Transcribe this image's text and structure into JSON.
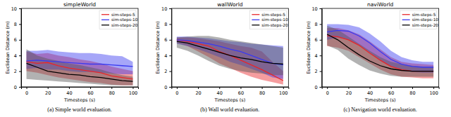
{
  "chart_data": [
    {
      "type": "line",
      "title": "simpleWorld",
      "caption": "(a) Simple world evaluation.",
      "x_label": "Timesteps (s)",
      "y_label": "Euclidean Distance (m)",
      "x": [
        0,
        10,
        20,
        30,
        40,
        50,
        60,
        70,
        80,
        90,
        100
      ],
      "xlim": [
        -5,
        105
      ],
      "xticks": [
        0,
        20,
        40,
        60,
        80,
        100
      ],
      "ylim": [
        0,
        10
      ],
      "yticks": [
        0,
        2,
        4,
        6,
        8,
        10
      ],
      "grid": false,
      "legend": "upper right",
      "series": [
        {
          "name": "sim-steps-5",
          "color": "#e8262a",
          "values": [
            3.2,
            3.0,
            3.1,
            2.7,
            2.4,
            2.2,
            2.0,
            1.8,
            1.4,
            1.2,
            1.0
          ],
          "lower": [
            2.0,
            1.8,
            1.5,
            1.2,
            1.0,
            0.8,
            0.6,
            0.5,
            0.3,
            0.2,
            0.2
          ],
          "upper": [
            4.5,
            4.2,
            4.3,
            4.0,
            3.8,
            3.5,
            3.3,
            3.0,
            2.6,
            2.3,
            2.0
          ]
        },
        {
          "name": "sim-steps-10",
          "color": "#3a3af0",
          "values": [
            3.3,
            3.4,
            3.3,
            3.2,
            3.1,
            3.0,
            2.9,
            2.9,
            2.8,
            2.7,
            2.6
          ],
          "lower": [
            2.3,
            2.4,
            2.2,
            2.2,
            2.0,
            1.9,
            1.9,
            1.8,
            1.7,
            1.6,
            1.6
          ],
          "upper": [
            4.6,
            4.6,
            4.7,
            4.5,
            4.4,
            4.3,
            4.3,
            4.2,
            4.0,
            3.9,
            3.2
          ]
        },
        {
          "name": "sim-steps-20",
          "color": "#000000",
          "values": [
            3.0,
            2.5,
            2.0,
            1.8,
            1.6,
            1.5,
            1.3,
            1.2,
            1.0,
            0.8,
            0.7
          ],
          "lower": [
            1.0,
            0.9,
            0.8,
            0.7,
            0.6,
            0.5,
            0.4,
            0.3,
            0.2,
            0.2,
            0.2
          ],
          "upper": [
            4.8,
            4.0,
            3.6,
            3.3,
            3.0,
            2.8,
            2.5,
            2.2,
            1.8,
            1.5,
            1.3
          ]
        }
      ]
    },
    {
      "type": "line",
      "title": "wallWorld",
      "caption": "(b) Wall world evaluation.",
      "x_label": "Timesteps (s)",
      "y_label": "Euclidean Distance (m)",
      "x": [
        0,
        10,
        20,
        30,
        40,
        50,
        60,
        70,
        80,
        90,
        100
      ],
      "xlim": [
        -5,
        105
      ],
      "xticks": [
        0,
        20,
        40,
        60,
        80,
        100
      ],
      "ylim": [
        0,
        10
      ],
      "yticks": [
        0,
        2,
        4,
        6,
        8,
        10
      ],
      "grid": false,
      "legend": "upper right",
      "series": [
        {
          "name": "sim-steps-5",
          "color": "#e8262a",
          "values": [
            6.0,
            5.8,
            5.5,
            5.2,
            4.5,
            4.0,
            3.4,
            2.8,
            2.2,
            1.5,
            0.8
          ],
          "lower": [
            5.6,
            5.2,
            4.5,
            3.8,
            3.0,
            2.4,
            1.8,
            1.3,
            0.9,
            0.6,
            0.3
          ],
          "upper": [
            6.3,
            6.3,
            6.2,
            6.0,
            5.8,
            5.5,
            5.2,
            5.0,
            4.5,
            3.2,
            2.0
          ]
        },
        {
          "name": "sim-steps-10",
          "color": "#3a3af0",
          "values": [
            6.0,
            5.9,
            5.7,
            5.5,
            5.2,
            4.8,
            4.5,
            4.0,
            3.5,
            3.0,
            2.8
          ],
          "lower": [
            5.5,
            5.2,
            4.8,
            4.3,
            3.8,
            3.2,
            2.8,
            2.3,
            1.8,
            1.2,
            1.0
          ],
          "upper": [
            6.4,
            6.4,
            6.3,
            6.2,
            6.0,
            5.8,
            5.7,
            5.5,
            5.4,
            5.3,
            5.2
          ]
        },
        {
          "name": "sim-steps-20",
          "color": "#000000",
          "values": [
            5.8,
            5.6,
            5.2,
            4.8,
            4.4,
            4.0,
            3.7,
            3.5,
            3.2,
            3.0,
            2.9
          ],
          "lower": [
            5.0,
            4.6,
            4.0,
            3.3,
            2.7,
            2.3,
            2.0,
            1.8,
            1.7,
            1.5,
            1.5
          ],
          "upper": [
            6.3,
            6.4,
            6.5,
            6.5,
            6.3,
            6.0,
            5.8,
            5.6,
            5.4,
            5.2,
            5.0
          ]
        }
      ]
    },
    {
      "type": "line",
      "title": "naviWorld",
      "caption": "(c) Navigation world evaluation.",
      "x_label": "Timesteps (s)",
      "y_label": "Euclidean Distance (m)",
      "x": [
        0,
        10,
        20,
        30,
        40,
        50,
        60,
        70,
        80,
        90,
        100
      ],
      "xlim": [
        -5,
        105
      ],
      "xticks": [
        0,
        20,
        40,
        60,
        80,
        100
      ],
      "ylim": [
        0,
        10
      ],
      "yticks": [
        0,
        2,
        4,
        6,
        8,
        10
      ],
      "grid": false,
      "legend": "upper right",
      "series": [
        {
          "name": "sim-steps-5",
          "color": "#e8262a",
          "values": [
            6.5,
            6.4,
            6.0,
            5.3,
            4.3,
            3.4,
            2.6,
            2.2,
            2.0,
            2.0,
            2.0
          ],
          "lower": [
            5.2,
            5.0,
            4.6,
            3.8,
            3.0,
            2.2,
            1.6,
            1.3,
            1.2,
            1.1,
            1.1
          ],
          "upper": [
            7.5,
            7.5,
            7.2,
            6.7,
            5.8,
            4.8,
            3.8,
            3.2,
            3.0,
            2.9,
            2.8
          ]
        },
        {
          "name": "sim-steps-10",
          "color": "#3a3af0",
          "values": [
            7.0,
            7.2,
            7.1,
            6.5,
            5.6,
            4.5,
            3.5,
            2.9,
            2.6,
            2.5,
            2.5
          ],
          "lower": [
            6.0,
            6.3,
            6.0,
            5.3,
            4.4,
            3.3,
            2.6,
            2.1,
            1.9,
            1.8,
            1.8
          ],
          "upper": [
            8.0,
            8.0,
            7.9,
            7.6,
            6.8,
            5.8,
            4.6,
            3.8,
            3.4,
            3.2,
            3.2
          ]
        },
        {
          "name": "sim-steps-20",
          "color": "#000000",
          "values": [
            6.7,
            6.0,
            5.0,
            4.1,
            3.3,
            2.7,
            2.3,
            2.1,
            2.0,
            2.0,
            2.0
          ],
          "lower": [
            5.3,
            4.7,
            3.6,
            2.8,
            2.1,
            1.7,
            1.4,
            1.3,
            1.3,
            1.3,
            1.3
          ],
          "upper": [
            7.8,
            7.3,
            6.4,
            5.5,
            4.6,
            3.8,
            3.2,
            2.9,
            2.7,
            2.6,
            2.6
          ]
        }
      ]
    }
  ]
}
